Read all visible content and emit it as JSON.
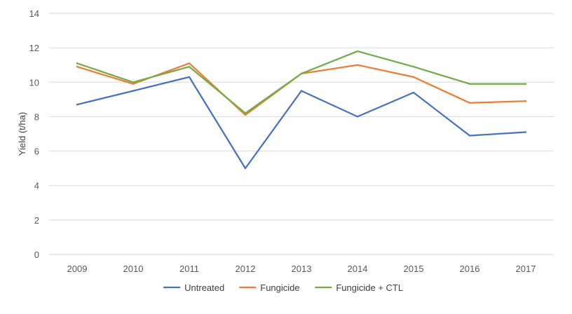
{
  "chart_data": {
    "type": "line",
    "categories": [
      "2009",
      "2010",
      "2011",
      "2012",
      "2013",
      "2014",
      "2015",
      "2016",
      "2017"
    ],
    "series": [
      {
        "name": "Untreated",
        "color": "#4472c4",
        "values": [
          8.7,
          9.5,
          10.3,
          5.0,
          9.5,
          8.0,
          9.4,
          6.9,
          7.1
        ]
      },
      {
        "name": "Fungicide",
        "color": "#ed7d31",
        "values": [
          10.9,
          9.9,
          11.1,
          8.1,
          10.5,
          11.0,
          10.3,
          8.8,
          8.9
        ]
      },
      {
        "name": "Fungicide + CTL",
        "color": "#70ad47",
        "values": [
          11.1,
          10.0,
          10.9,
          8.2,
          10.5,
          11.8,
          10.9,
          9.9,
          9.9
        ]
      }
    ],
    "ylabel": "Yield (t/ha)",
    "xlabel": "",
    "ylim": [
      0,
      14
    ],
    "yticks": [
      "0",
      "2",
      "4",
      "6",
      "8",
      "10",
      "12",
      "14"
    ],
    "grid": true,
    "legend_position": "bottom"
  }
}
